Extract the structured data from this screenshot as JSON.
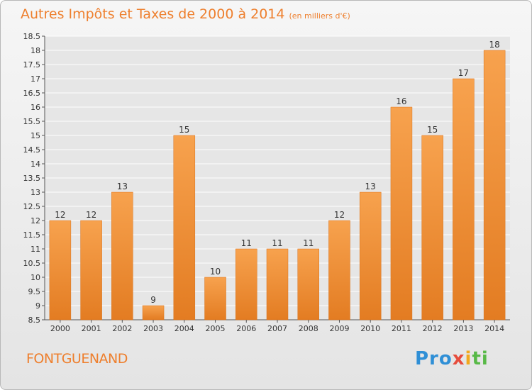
{
  "header": {
    "title": "Autres Impôts et Taxes de 2000 à 2014",
    "unit": "(en milliers d'€)"
  },
  "footer": {
    "commune": "FONTGUENAND",
    "logo": [
      "Pro",
      "x",
      "i",
      "ti"
    ]
  },
  "colors": {
    "bar_top": "#f7a24e",
    "bar_bottom": "#e37c22",
    "title": "#ee7f2d",
    "grid": "#ffffff",
    "plot_bg": "#e6e6e6"
  },
  "chart_data": {
    "type": "bar",
    "title": "Autres Impôts et Taxes de 2000 à 2014",
    "subtitle": "(en milliers d'€)",
    "xlabel": "",
    "ylabel": "",
    "categories": [
      "2000",
      "2001",
      "2002",
      "2003",
      "2004",
      "2005",
      "2006",
      "2007",
      "2008",
      "2009",
      "2010",
      "2011",
      "2012",
      "2013",
      "2014"
    ],
    "values": [
      12,
      12,
      13,
      9,
      15,
      10,
      11,
      11,
      11,
      12,
      13,
      16,
      15,
      17,
      18
    ],
    "data_labels": [
      "12",
      "12",
      "13",
      "9",
      "15",
      "10",
      "11",
      "11",
      "11",
      "12",
      "13",
      "16",
      "15",
      "17",
      "18"
    ],
    "ylim": [
      8.5,
      18.5
    ],
    "yticks": [
      "8.5",
      "9",
      "9.5",
      "10",
      "10.5",
      "11",
      "11.5",
      "12",
      "12.5",
      "13",
      "13.5",
      "14",
      "14.5",
      "15",
      "15.5",
      "16",
      "16.5",
      "17",
      "17.5",
      "18",
      "18.5"
    ],
    "grid": true,
    "legend": "none"
  }
}
